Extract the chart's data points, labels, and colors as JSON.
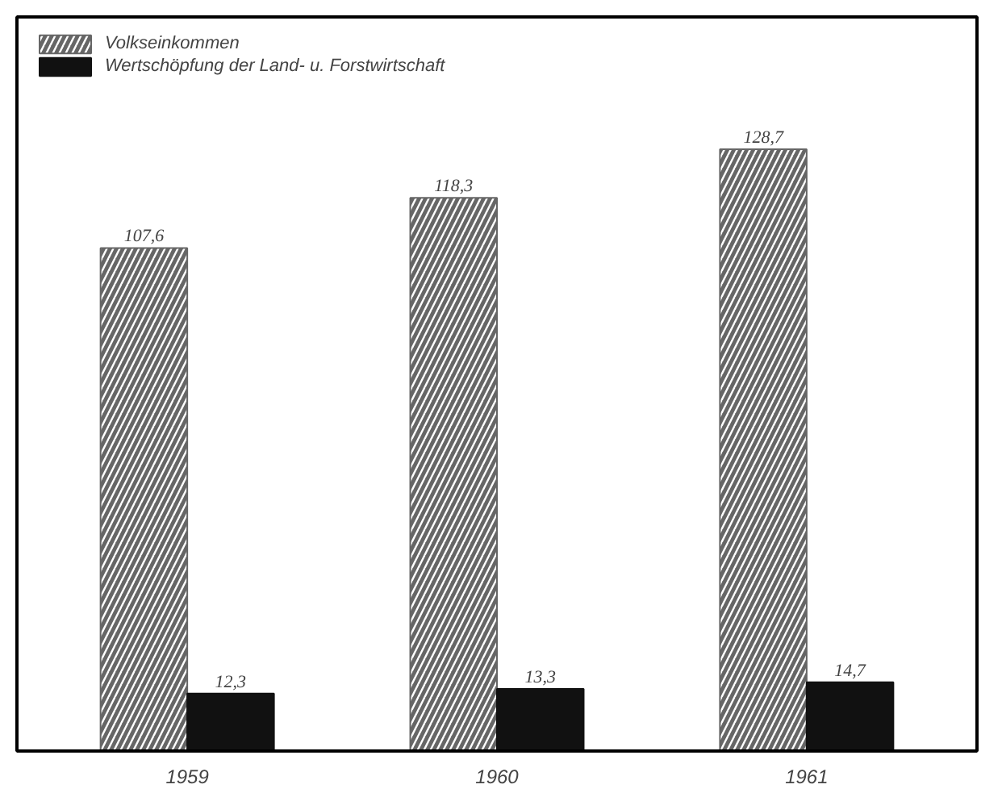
{
  "chart_data": {
    "type": "bar",
    "categories": [
      "1959",
      "1960",
      "1961"
    ],
    "series": [
      {
        "name": "Volkseinkommen",
        "color": "#666666",
        "values": [
          107.6,
          118.3,
          128.7
        ],
        "value_labels": [
          "107,6",
          "118,3",
          "128,7"
        ]
      },
      {
        "name": "Wertschöpfung der Land- u. Forstwirtschaft",
        "color": "#111111",
        "values": [
          12.3,
          13.3,
          14.7
        ],
        "value_labels": [
          "12,3",
          "13,3",
          "14,7"
        ]
      }
    ],
    "legend": "top left",
    "grid": false
  }
}
